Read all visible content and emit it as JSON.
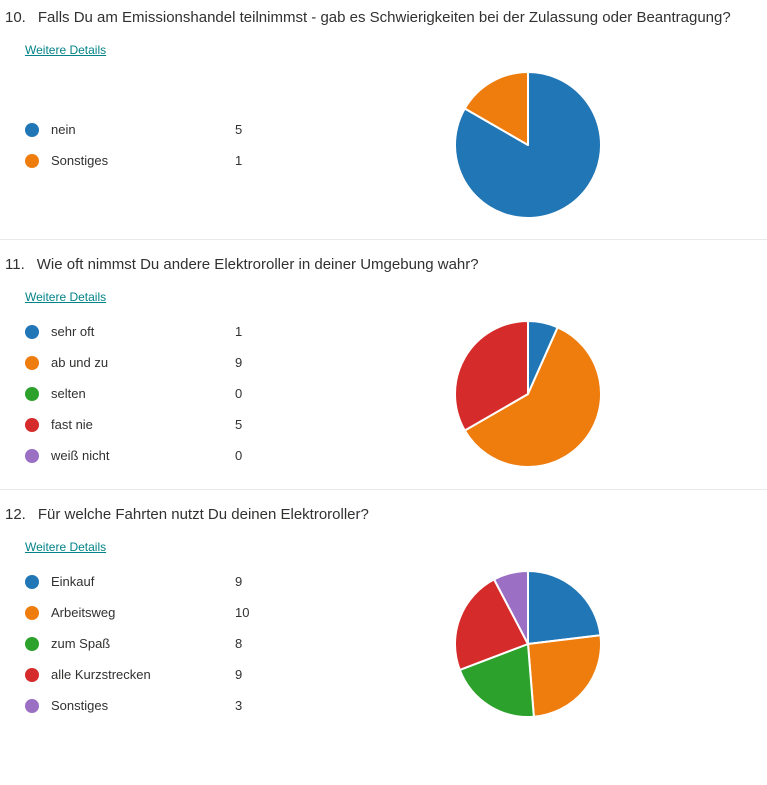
{
  "link_color": "#038387",
  "text_color": "#323130",
  "divider_color": "#e9e9e9",
  "palette": {
    "blue": "#2176b5",
    "orange": "#ee7d0e",
    "green": "#2ca12c",
    "red": "#d62b2b",
    "purple": "#9a6fc4"
  },
  "chart_data": [
    {
      "type": "pie",
      "number": "10.",
      "title": "Falls Du am Emissionshandel teilnimmst - gab es Schwierigkeiten bei der Zulassung oder Beantragung?",
      "details_label": "Weitere Details",
      "categories": [
        "nein",
        "Sonstiges"
      ],
      "values": [
        5,
        1
      ],
      "colors": [
        "#2176b5",
        "#ee7d0e"
      ],
      "legend_position": "left",
      "start_angle_deg": 0,
      "direction": "clockwise"
    },
    {
      "type": "pie",
      "number": "11.",
      "title": "Wie oft nimmst Du andere Elektroroller in deiner Umgebung wahr?",
      "details_label": "Weitere Details",
      "categories": [
        "sehr oft",
        "ab und zu",
        "selten",
        "fast nie",
        "weiß nicht"
      ],
      "values": [
        1,
        9,
        0,
        5,
        0
      ],
      "colors": [
        "#2176b5",
        "#ee7d0e",
        "#2ca12c",
        "#d62b2b",
        "#9a6fc4"
      ],
      "legend_position": "left",
      "start_angle_deg": 0,
      "direction": "clockwise"
    },
    {
      "type": "pie",
      "number": "12.",
      "title": "Für welche Fahrten nutzt Du deinen Elektroroller?",
      "details_label": "Weitere Details",
      "categories": [
        "Einkauf",
        "Arbeitsweg",
        "zum Spaß",
        "alle Kurzstrecken",
        "Sonstiges"
      ],
      "values": [
        9,
        10,
        8,
        9,
        3
      ],
      "colors": [
        "#2176b5",
        "#ee7d0e",
        "#2ca12c",
        "#d62b2b",
        "#9a6fc4"
      ],
      "legend_position": "left",
      "start_angle_deg": 0,
      "direction": "clockwise"
    }
  ]
}
